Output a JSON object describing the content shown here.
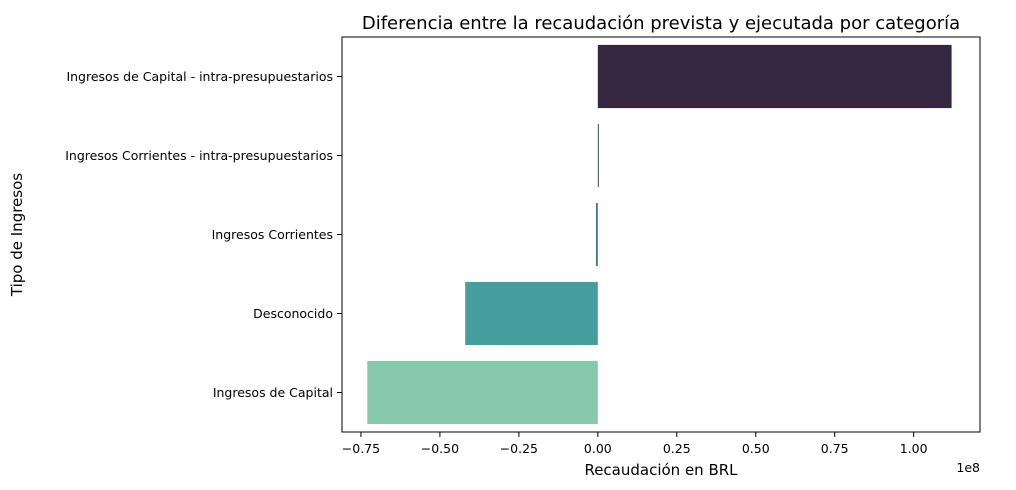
{
  "chart_data": {
    "type": "bar",
    "orientation": "horizontal",
    "title": "Diferencia entre la recaudación prevista y ejecutada por categoría",
    "xlabel": "Recaudación en BRL",
    "ylabel": "Tipo de Ingresos",
    "x_offset_label": "1e8",
    "x_scale": 100000000,
    "xlim": [
      -0.81,
      1.21
    ],
    "x_ticks": [
      -0.75,
      -0.5,
      -0.25,
      0.0,
      0.25,
      0.5,
      0.75,
      1.0
    ],
    "x_tick_labels": [
      "−0.75",
      "−0.50",
      "−0.25",
      "0.00",
      "0.25",
      "0.50",
      "0.75",
      "1.00"
    ],
    "categories": [
      "Ingresos de Capital - intra-presupuestarios",
      "Ingresos Corrientes - intra-presupuestarios",
      "Ingresos Corrientes",
      "Desconocido",
      "Ingresos de Capital"
    ],
    "values": [
      112000000,
      200000,
      -600000,
      -42000000,
      -73000000
    ],
    "colors": [
      "#35273f",
      "#3c4a6b",
      "#3b7d96",
      "#479e9f",
      "#88c9ac"
    ],
    "grid": false,
    "legend": "none"
  }
}
